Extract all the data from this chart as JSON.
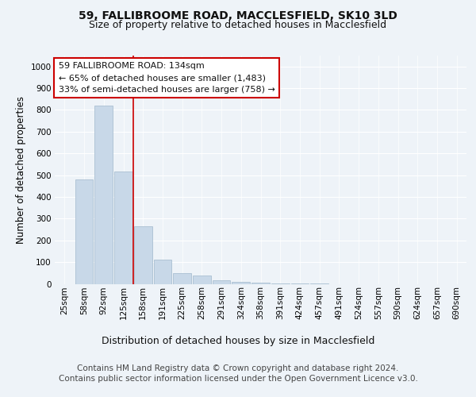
{
  "title1": "59, FALLIBROOME ROAD, MACCLESFIELD, SK10 3LD",
  "title2": "Size of property relative to detached houses in Macclesfield",
  "xlabel": "Distribution of detached houses by size in Macclesfield",
  "ylabel": "Number of detached properties",
  "footnote1": "Contains HM Land Registry data © Crown copyright and database right 2024.",
  "footnote2": "Contains public sector information licensed under the Open Government Licence v3.0.",
  "annotation_line1": "59 FALLIBROOME ROAD: 134sqm",
  "annotation_line2": "← 65% of detached houses are smaller (1,483)",
  "annotation_line3": "33% of semi-detached houses are larger (758) →",
  "bar_labels": [
    "25sqm",
    "58sqm",
    "92sqm",
    "125sqm",
    "158sqm",
    "191sqm",
    "225sqm",
    "258sqm",
    "291sqm",
    "324sqm",
    "358sqm",
    "391sqm",
    "424sqm",
    "457sqm",
    "491sqm",
    "524sqm",
    "557sqm",
    "590sqm",
    "624sqm",
    "657sqm",
    "690sqm"
  ],
  "bar_values": [
    0,
    480,
    820,
    515,
    265,
    110,
    50,
    40,
    15,
    10,
    5,
    2,
    1,
    1,
    0,
    0,
    0,
    0,
    0,
    0,
    0
  ],
  "bar_color": "#c8d8e8",
  "bar_edge_color": "#a0b8cc",
  "red_line_x": 3.5,
  "ylim": [
    0,
    1050
  ],
  "yticks": [
    0,
    100,
    200,
    300,
    400,
    500,
    600,
    700,
    800,
    900,
    1000
  ],
  "bg_color": "#eef3f8",
  "plot_bg_color": "#eef3f8",
  "grid_color": "#ffffff",
  "annotation_box_color": "#ffffff",
  "annotation_box_edge": "#cc0000",
  "title_fontsize": 10,
  "subtitle_fontsize": 9,
  "axis_label_fontsize": 8.5,
  "tick_fontsize": 7.5,
  "annotation_fontsize": 8,
  "footnote_fontsize": 7.5
}
